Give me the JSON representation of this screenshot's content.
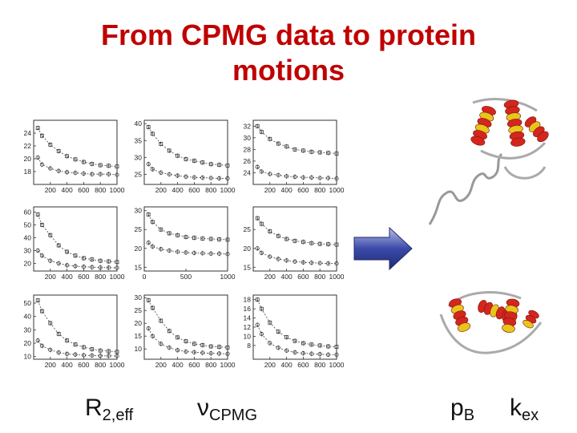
{
  "title": {
    "line1": "From CPMG data to protein",
    "line2": "motions"
  },
  "labels": {
    "r2": {
      "main": "R",
      "sub": "2,eff"
    },
    "nu": {
      "main": "ν",
      "sub": "CPMG"
    },
    "pb": {
      "main": "p",
      "sub": "B"
    },
    "kex": {
      "main": "k",
      "sub": "ex"
    }
  },
  "icons": {
    "arrow": "right-arrow-icon",
    "protein_top": "protein-structure-extended-icon",
    "protein_bottom": "protein-structure-compact-icon"
  },
  "colors": {
    "title": "#c00000",
    "arrow_fill": "#3b4aa8",
    "helix_red": "#d4261d",
    "helix_yellow": "#e8c51a"
  },
  "chart_data": [
    {
      "type": "scatter",
      "panel": "r1c1",
      "xlim": [
        0,
        1000
      ],
      "ylim": [
        16,
        26
      ],
      "xticks": [
        "200",
        "400",
        "600",
        "800",
        "1000"
      ],
      "yticks": [
        "18",
        "20",
        "22",
        "24"
      ],
      "series": [
        {
          "marker": "square",
          "x": [
            50,
            100,
            200,
            300,
            400,
            500,
            600,
            700,
            800,
            900,
            1000
          ],
          "y": [
            24.8,
            23.6,
            22.2,
            21.2,
            20.4,
            19.9,
            19.5,
            19.2,
            19.0,
            18.9,
            18.8
          ]
        },
        {
          "marker": "circle",
          "x": [
            50,
            100,
            200,
            300,
            400,
            500,
            600,
            700,
            800,
            900,
            1000
          ],
          "y": [
            20.2,
            19.1,
            18.5,
            18.1,
            17.9,
            17.8,
            17.7,
            17.6,
            17.6,
            17.6,
            17.5
          ]
        }
      ]
    },
    {
      "type": "scatter",
      "panel": "r1c2",
      "xlim": [
        0,
        1000
      ],
      "ylim": [
        22,
        41
      ],
      "xticks": [
        "200",
        "400",
        "600",
        "800",
        "1000"
      ],
      "yticks": [
        "25",
        "30",
        "35",
        "40"
      ],
      "series": [
        {
          "marker": "square",
          "x": [
            50,
            100,
            200,
            300,
            400,
            500,
            600,
            700,
            800,
            900,
            1000
          ],
          "y": [
            39,
            37,
            34,
            32,
            30.5,
            29.5,
            29,
            28.5,
            28,
            27.8,
            27.6
          ]
        },
        {
          "marker": "circle",
          "x": [
            50,
            100,
            200,
            300,
            400,
            500,
            600,
            700,
            800,
            900,
            1000
          ],
          "y": [
            28,
            26.5,
            25.5,
            25,
            24.6,
            24.3,
            24.1,
            24,
            23.9,
            23.8,
            23.8
          ]
        }
      ]
    },
    {
      "type": "scatter",
      "panel": "r1c3",
      "xlim": [
        0,
        1000
      ],
      "ylim": [
        22,
        33
      ],
      "xticks": [
        "200",
        "400",
        "600",
        "800",
        "1000"
      ],
      "yticks": [
        "24",
        "26",
        "28",
        "30",
        "32"
      ],
      "series": [
        {
          "marker": "square",
          "x": [
            50,
            100,
            200,
            300,
            400,
            500,
            600,
            700,
            800,
            900,
            1000
          ],
          "y": [
            32,
            31,
            29.8,
            29,
            28.5,
            28,
            27.8,
            27.6,
            27.5,
            27.4,
            27.3
          ]
        },
        {
          "marker": "circle",
          "x": [
            50,
            100,
            200,
            300,
            400,
            500,
            600,
            700,
            800,
            900,
            1000
          ],
          "y": [
            25,
            24.2,
            23.8,
            23.6,
            23.4,
            23.3,
            23.2,
            23.2,
            23.1,
            23.1,
            23.0
          ]
        }
      ]
    },
    {
      "type": "scatter",
      "panel": "r2c1",
      "xlim": [
        0,
        1000
      ],
      "ylim": [
        14,
        64
      ],
      "xticks": [
        "200",
        "400",
        "600",
        "800",
        "1000"
      ],
      "yticks": [
        "20",
        "30",
        "40",
        "50",
        "60"
      ],
      "series": [
        {
          "marker": "square",
          "x": [
            50,
            100,
            200,
            300,
            400,
            500,
            600,
            700,
            800,
            900,
            1000
          ],
          "y": [
            58,
            50,
            42,
            34,
            29,
            26,
            24,
            23,
            22,
            21.5,
            21
          ]
        },
        {
          "marker": "circle",
          "x": [
            50,
            100,
            200,
            300,
            400,
            500,
            600,
            700,
            800,
            900,
            1000
          ],
          "y": [
            30,
            26,
            22,
            20,
            18.5,
            17.8,
            17.3,
            17,
            16.8,
            16.6,
            16.5
          ]
        }
      ]
    },
    {
      "type": "scatter",
      "panel": "r2c2",
      "xlim": [
        0,
        1000
      ],
      "ylim": [
        14,
        31
      ],
      "xticks": [
        "0",
        "500",
        "1000"
      ],
      "yticks": [
        "15",
        "20",
        "25",
        "30"
      ],
      "series": [
        {
          "marker": "square",
          "x": [
            50,
            100,
            200,
            300,
            400,
            500,
            600,
            700,
            800,
            900,
            1000
          ],
          "y": [
            29,
            27,
            25,
            24,
            23.5,
            23,
            22.8,
            22.6,
            22.5,
            22.4,
            22.3
          ]
        },
        {
          "marker": "circle",
          "x": [
            50,
            100,
            200,
            300,
            400,
            500,
            600,
            700,
            800,
            900,
            1000
          ],
          "y": [
            21.5,
            20.5,
            19.8,
            19.4,
            19.1,
            18.9,
            18.8,
            18.7,
            18.6,
            18.6,
            18.5
          ]
        }
      ]
    },
    {
      "type": "scatter",
      "panel": "r2c3",
      "xlim": [
        0,
        1000
      ],
      "ylim": [
        14,
        31
      ],
      "xticks": [
        "200",
        "400",
        "600",
        "800",
        "1000"
      ],
      "yticks": [
        "15",
        "20",
        "25"
      ],
      "series": [
        {
          "marker": "square",
          "x": [
            50,
            100,
            200,
            300,
            400,
            500,
            600,
            700,
            800,
            900,
            1000
          ],
          "y": [
            28,
            26.5,
            24.5,
            23.3,
            22.5,
            22,
            21.7,
            21.4,
            21.2,
            21.1,
            21.0
          ]
        },
        {
          "marker": "circle",
          "x": [
            50,
            100,
            200,
            300,
            400,
            500,
            600,
            700,
            800,
            900,
            1000
          ],
          "y": [
            20,
            18.8,
            17.8,
            17.2,
            16.8,
            16.5,
            16.3,
            16.2,
            16.1,
            16.0,
            16.0
          ]
        }
      ]
    },
    {
      "type": "scatter",
      "panel": "r3c1",
      "xlim": [
        0,
        1000
      ],
      "ylim": [
        8,
        56
      ],
      "xticks": [
        "200",
        "400",
        "600",
        "800",
        "1000"
      ],
      "yticks": [
        "10",
        "20",
        "30",
        "40",
        "50"
      ],
      "series": [
        {
          "marker": "square",
          "x": [
            50,
            100,
            200,
            300,
            400,
            500,
            600,
            700,
            800,
            900,
            1000
          ],
          "y": [
            52,
            44,
            35,
            27,
            22,
            19,
            17,
            15.5,
            14.5,
            14,
            13.5
          ]
        },
        {
          "marker": "circle",
          "x": [
            50,
            100,
            200,
            300,
            400,
            500,
            600,
            700,
            800,
            900,
            1000
          ],
          "y": [
            22,
            18,
            15,
            13,
            12,
            11.5,
            11,
            10.8,
            10.6,
            10.5,
            10.4
          ]
        }
      ]
    },
    {
      "type": "scatter",
      "panel": "r3c2",
      "xlim": [
        0,
        1000
      ],
      "ylim": [
        6,
        31
      ],
      "xticks": [
        "200",
        "400",
        "600",
        "800",
        "1000"
      ],
      "yticks": [
        "10",
        "15",
        "20",
        "25",
        "30"
      ],
      "series": [
        {
          "marker": "square",
          "x": [
            50,
            100,
            200,
            300,
            400,
            500,
            600,
            700,
            800,
            900,
            1000
          ],
          "y": [
            29,
            26,
            21,
            17,
            14.5,
            13,
            12,
            11.5,
            11,
            10.8,
            10.6
          ]
        },
        {
          "marker": "circle",
          "x": [
            50,
            100,
            200,
            300,
            400,
            500,
            600,
            700,
            800,
            900,
            1000
          ],
          "y": [
            18,
            15,
            12,
            10.5,
            9.5,
            9,
            8.7,
            8.5,
            8.3,
            8.2,
            8.1
          ]
        }
      ]
    },
    {
      "type": "scatter",
      "panel": "r3c3",
      "xlim": [
        0,
        1000
      ],
      "ylim": [
        5,
        19
      ],
      "xticks": [
        "200",
        "400",
        "600",
        "800",
        "1000"
      ],
      "yticks": [
        "8",
        "10",
        "12",
        "14",
        "16",
        "18"
      ],
      "series": [
        {
          "marker": "square",
          "x": [
            50,
            100,
            200,
            300,
            400,
            500,
            600,
            700,
            800,
            900,
            1000
          ],
          "y": [
            18,
            16,
            13,
            11,
            9.8,
            9,
            8.5,
            8.2,
            8,
            7.8,
            7.7
          ]
        },
        {
          "marker": "circle",
          "x": [
            50,
            100,
            200,
            300,
            400,
            500,
            600,
            700,
            800,
            900,
            1000
          ],
          "y": [
            12.5,
            10.5,
            8.5,
            7.5,
            6.9,
            6.5,
            6.3,
            6.2,
            6.1,
            6.0,
            6.0
          ]
        }
      ]
    }
  ]
}
